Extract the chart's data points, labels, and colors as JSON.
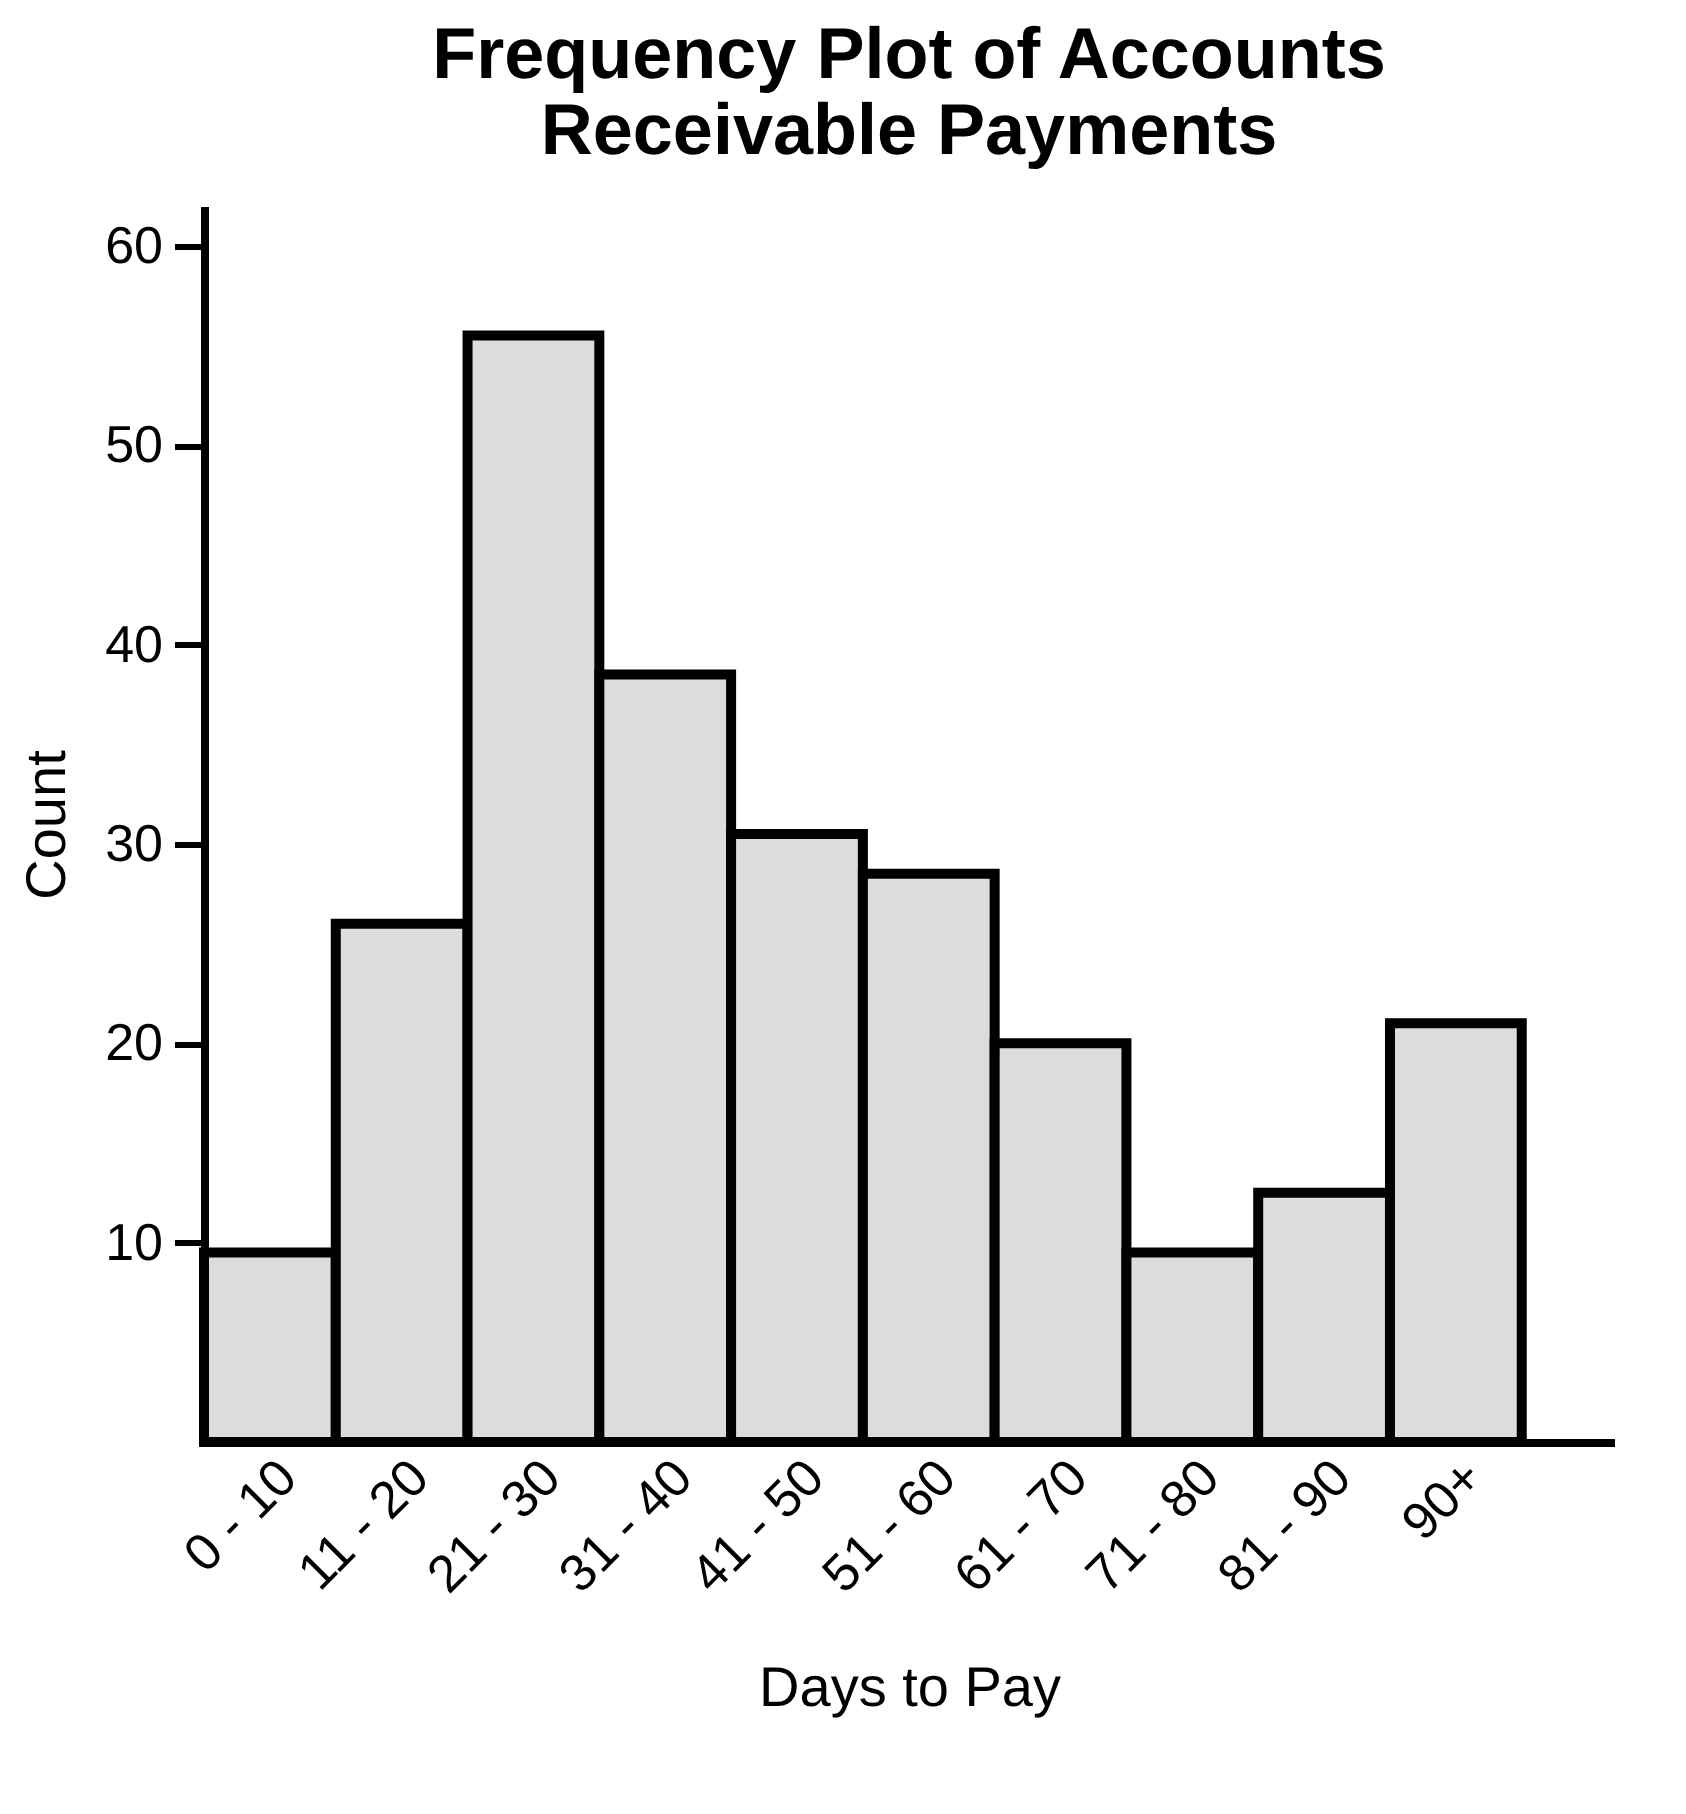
{
  "chart_data": {
    "type": "bar",
    "title": "Frequency Plot of Accounts\nReceivable Payments",
    "xlabel": "Days to Pay",
    "ylabel": "Count",
    "categories": [
      "0 - 10",
      "11 - 20",
      "21 - 30",
      "31 - 40",
      "41 - 50",
      "51 - 60",
      "61 - 70",
      "71 - 80",
      "81 - 90",
      "90+"
    ],
    "values": [
      9.5,
      26,
      55.5,
      38.5,
      30.5,
      28.5,
      20,
      9.5,
      12.5,
      21
    ],
    "color": "#dcdcdc",
    "ylim": [
      0,
      62
    ],
    "yticks": [
      10,
      20,
      30,
      40,
      50,
      60
    ],
    "grid": false
  }
}
